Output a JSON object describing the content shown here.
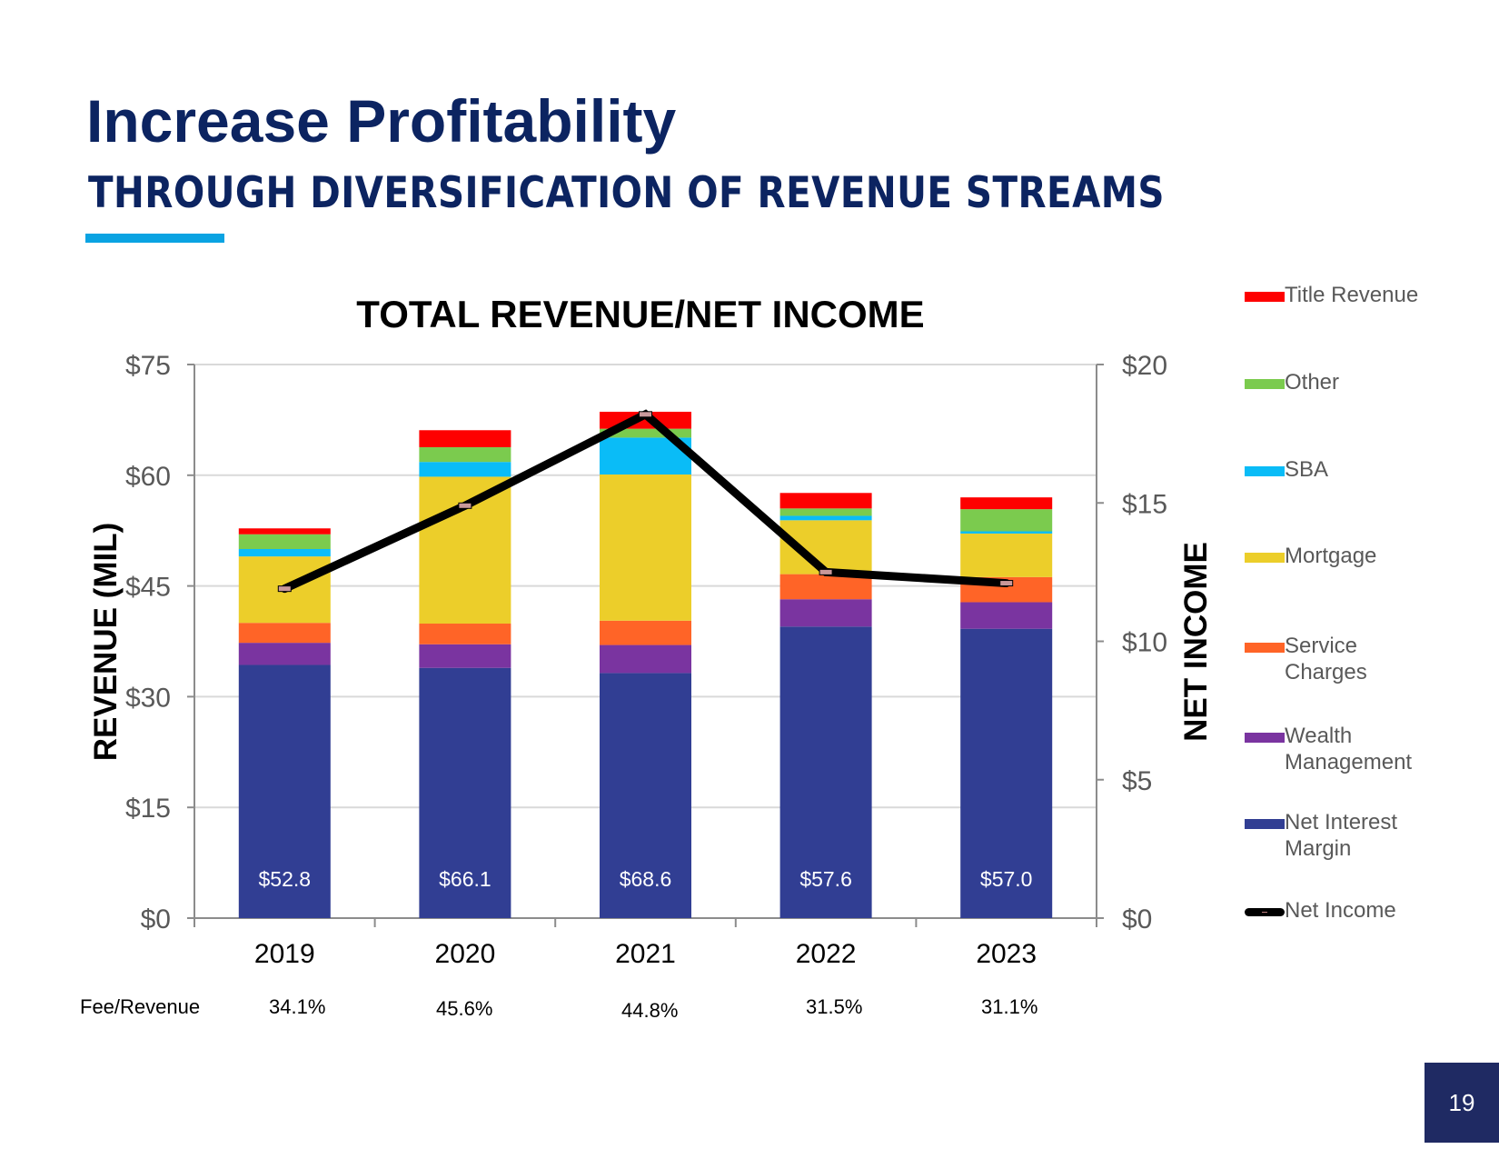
{
  "slide": {
    "title": "Increase Profitability",
    "subtitle": "THROUGH DIVERSIFICATION OF REVENUE STREAMS",
    "page_number": "19",
    "accent_color": "#0aa3e2",
    "title_color": "#0c2461"
  },
  "fee_revenue": {
    "label": "Fee/Revenue",
    "values": [
      "34.1%",
      "45.6%",
      "44.8%",
      "31.5%",
      "31.1%"
    ]
  },
  "chart_data": {
    "type": "bar",
    "stacked": true,
    "title": "TOTAL REVENUE/NET INCOME",
    "xlabel": "",
    "ylabel": "REVENUE (MIL)",
    "y2label": "NET INCOME",
    "categories": [
      "2019",
      "2020",
      "2021",
      "2022",
      "2023"
    ],
    "ylim": [
      0,
      75
    ],
    "yticks": [
      0,
      15,
      30,
      45,
      60,
      75
    ],
    "ytick_labels": [
      "$0",
      "$15",
      "$30",
      "$45",
      "$60",
      "$75"
    ],
    "y2lim": [
      0,
      20
    ],
    "y2ticks": [
      0,
      5,
      10,
      15,
      20
    ],
    "y2tick_labels": [
      "$0",
      "$5",
      "$10",
      "$15",
      "$20"
    ],
    "grid": true,
    "legend_position": "right",
    "series": [
      {
        "name": "Net Interest Margin",
        "color": "#313e93",
        "values": [
          34.3,
          33.9,
          33.2,
          39.5,
          39.2
        ]
      },
      {
        "name": "Wealth Management",
        "color": "#7a34a0",
        "values": [
          3.0,
          3.2,
          3.8,
          3.7,
          3.6
        ]
      },
      {
        "name": "Service Charges",
        "color": "#ff6427",
        "values": [
          2.7,
          2.8,
          3.3,
          3.4,
          3.4
        ]
      },
      {
        "name": "Mortgage",
        "color": "#ecce2a",
        "values": [
          9.0,
          19.9,
          19.8,
          7.3,
          5.9
        ]
      },
      {
        "name": "SBA",
        "color": "#0abcf7",
        "values": [
          1.0,
          2.0,
          5.0,
          0.6,
          0.3
        ]
      },
      {
        "name": "Other",
        "color": "#7bcb4e",
        "values": [
          2.0,
          2.0,
          1.2,
          1.0,
          3.0
        ]
      },
      {
        "name": "Title Revenue",
        "color": "#fe0000",
        "values": [
          0.8,
          2.3,
          2.3,
          2.1,
          1.6
        ]
      }
    ],
    "totals": [
      52.8,
      66.1,
      68.6,
      57.6,
      57.0
    ],
    "total_labels": [
      "$52.8",
      "$66.1",
      "$68.6",
      "$57.6",
      "$57.0"
    ],
    "line_series": {
      "name": "Net Income",
      "color": "#000000",
      "axis": "secondary",
      "values": [
        11.9,
        14.9,
        18.2,
        12.5,
        12.1
      ]
    },
    "legend": [
      "Title Revenue",
      "Other",
      "SBA",
      "Mortgage",
      "Service Charges",
      "Wealth Management",
      "Net Interest Margin",
      "Net Income"
    ]
  }
}
